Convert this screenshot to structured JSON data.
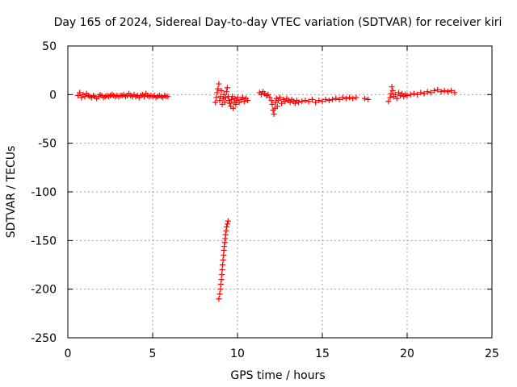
{
  "chart_data": {
    "type": "scatter",
    "title": "Day 165 of 2024, Sidereal Day-to-day VTEC variation (SDTVAR) for receiver kiri",
    "xlabel": "GPS time / hours",
    "ylabel": "SDTVAR / TECUs",
    "xlim": [
      0,
      25
    ],
    "ylim": [
      -250,
      50
    ],
    "xticks": [
      0,
      5,
      10,
      15,
      20,
      25
    ],
    "yticks": [
      50,
      0,
      -50,
      -100,
      -150,
      -200,
      -250
    ],
    "grid": true,
    "marker": "+",
    "color": "#ff0000",
    "series": [
      {
        "values": [
          [
            0.6,
            -1
          ],
          [
            0.7,
            2
          ],
          [
            0.8,
            -3
          ],
          [
            0.9,
            0
          ],
          [
            1.0,
            -2
          ],
          [
            1.1,
            1
          ],
          [
            1.2,
            -1
          ],
          [
            1.3,
            -2
          ],
          [
            1.4,
            -3
          ],
          [
            1.5,
            -1
          ],
          [
            1.6,
            -2
          ],
          [
            1.7,
            -4
          ],
          [
            1.8,
            -2
          ],
          [
            1.9,
            0
          ],
          [
            2.0,
            -1
          ],
          [
            2.1,
            -3
          ],
          [
            2.2,
            -2
          ],
          [
            2.3,
            -1
          ],
          [
            2.4,
            -2
          ],
          [
            2.5,
            -1
          ],
          [
            2.6,
            0
          ],
          [
            2.7,
            -1
          ],
          [
            2.8,
            -2
          ],
          [
            2.9,
            -1
          ],
          [
            3.0,
            -2
          ],
          [
            3.1,
            -1
          ],
          [
            3.2,
            -1
          ],
          [
            3.3,
            0
          ],
          [
            3.4,
            -2
          ],
          [
            3.5,
            -1
          ],
          [
            3.6,
            1
          ],
          [
            3.7,
            -1
          ],
          [
            3.8,
            -2
          ],
          [
            3.9,
            0
          ],
          [
            4.0,
            -2
          ],
          [
            4.1,
            -1
          ],
          [
            4.2,
            -3
          ],
          [
            4.3,
            -1
          ],
          [
            4.4,
            0
          ],
          [
            4.5,
            -2
          ],
          [
            4.6,
            1
          ],
          [
            4.7,
            -1
          ],
          [
            4.8,
            -2
          ],
          [
            4.9,
            -1
          ],
          [
            5.0,
            -2
          ],
          [
            5.1,
            -1
          ],
          [
            5.2,
            -3
          ],
          [
            5.3,
            -2
          ],
          [
            5.4,
            -1
          ],
          [
            5.5,
            -2
          ],
          [
            5.6,
            -3
          ],
          [
            5.7,
            -1
          ],
          [
            5.8,
            -2
          ],
          [
            5.9,
            -2
          ],
          [
            8.7,
            -8
          ],
          [
            8.75,
            -3
          ],
          [
            8.8,
            2
          ],
          [
            8.85,
            6
          ],
          [
            8.9,
            11
          ],
          [
            8.95,
            -6
          ],
          [
            9.0,
            -2
          ],
          [
            9.05,
            4
          ],
          [
            9.1,
            -10
          ],
          [
            9.15,
            -4
          ],
          [
            9.2,
            0
          ],
          [
            9.25,
            -8
          ],
          [
            9.3,
            -3
          ],
          [
            9.35,
            3
          ],
          [
            9.4,
            7
          ],
          [
            9.45,
            -2
          ],
          [
            9.5,
            -6
          ],
          [
            9.55,
            -9
          ],
          [
            9.6,
            -12
          ],
          [
            9.65,
            -5
          ],
          [
            9.7,
            -2
          ],
          [
            9.75,
            -14
          ],
          [
            9.8,
            -8
          ],
          [
            9.85,
            -4
          ],
          [
            9.9,
            -10
          ],
          [
            9.95,
            -6
          ],
          [
            10.0,
            -3
          ],
          [
            10.1,
            -8
          ],
          [
            10.2,
            -5
          ],
          [
            10.3,
            -3
          ],
          [
            10.4,
            -7
          ],
          [
            10.5,
            -4
          ],
          [
            10.6,
            -6
          ],
          [
            8.9,
            -210
          ],
          [
            8.95,
            -205
          ],
          [
            9.0,
            -200
          ],
          [
            9.02,
            -195
          ],
          [
            9.05,
            -190
          ],
          [
            9.08,
            -185
          ],
          [
            9.1,
            -180
          ],
          [
            9.12,
            -175
          ],
          [
            9.15,
            -170
          ],
          [
            9.18,
            -165
          ],
          [
            9.2,
            -160
          ],
          [
            9.22,
            -156
          ],
          [
            9.25,
            -152
          ],
          [
            9.28,
            -148
          ],
          [
            9.3,
            -144
          ],
          [
            9.33,
            -140
          ],
          [
            9.36,
            -136
          ],
          [
            9.4,
            -133
          ],
          [
            9.45,
            -130
          ],
          [
            11.3,
            2
          ],
          [
            11.4,
            0
          ],
          [
            11.5,
            3
          ],
          [
            11.6,
            1
          ],
          [
            11.7,
            -1
          ],
          [
            11.8,
            0
          ],
          [
            11.9,
            -3
          ],
          [
            12.0,
            -6
          ],
          [
            12.05,
            -10
          ],
          [
            12.1,
            -16
          ],
          [
            12.15,
            -20
          ],
          [
            12.2,
            -14
          ],
          [
            12.25,
            -8
          ],
          [
            12.3,
            -4
          ],
          [
            12.35,
            -12
          ],
          [
            12.4,
            -6
          ],
          [
            12.5,
            -3
          ],
          [
            12.6,
            -9
          ],
          [
            12.7,
            -5
          ],
          [
            12.8,
            -7
          ],
          [
            12.9,
            -4
          ],
          [
            13.0,
            -6
          ],
          [
            13.1,
            -8
          ],
          [
            13.2,
            -5
          ],
          [
            13.3,
            -7
          ],
          [
            13.4,
            -9
          ],
          [
            13.5,
            -6
          ],
          [
            13.6,
            -8
          ],
          [
            13.8,
            -7
          ],
          [
            14.0,
            -6
          ],
          [
            14.2,
            -7
          ],
          [
            14.4,
            -5
          ],
          [
            14.6,
            -8
          ],
          [
            14.8,
            -6
          ],
          [
            15.0,
            -7
          ],
          [
            15.2,
            -5
          ],
          [
            15.4,
            -6
          ],
          [
            15.6,
            -5
          ],
          [
            15.8,
            -4
          ],
          [
            16.0,
            -5
          ],
          [
            16.2,
            -3
          ],
          [
            16.4,
            -4
          ],
          [
            16.6,
            -3
          ],
          [
            16.8,
            -4
          ],
          [
            17.0,
            -3
          ],
          [
            17.5,
            -4
          ],
          [
            17.7,
            -5
          ],
          [
            18.9,
            -7
          ],
          [
            19.0,
            -3
          ],
          [
            19.05,
            1
          ],
          [
            19.1,
            8
          ],
          [
            19.15,
            4
          ],
          [
            19.2,
            -2
          ],
          [
            19.3,
            0
          ],
          [
            19.4,
            -4
          ],
          [
            19.5,
            2
          ],
          [
            19.6,
            -1
          ],
          [
            19.7,
            1
          ],
          [
            19.8,
            -2
          ],
          [
            19.9,
            0
          ],
          [
            20.0,
            -1
          ],
          [
            20.2,
            0
          ],
          [
            20.4,
            1
          ],
          [
            20.6,
            0
          ],
          [
            20.8,
            2
          ],
          [
            21.0,
            1
          ],
          [
            21.2,
            3
          ],
          [
            21.4,
            2
          ],
          [
            21.6,
            4
          ],
          [
            21.8,
            5
          ],
          [
            22.0,
            3
          ],
          [
            22.2,
            4
          ],
          [
            22.4,
            3
          ],
          [
            22.6,
            4
          ],
          [
            22.8,
            2
          ]
        ]
      }
    ]
  }
}
